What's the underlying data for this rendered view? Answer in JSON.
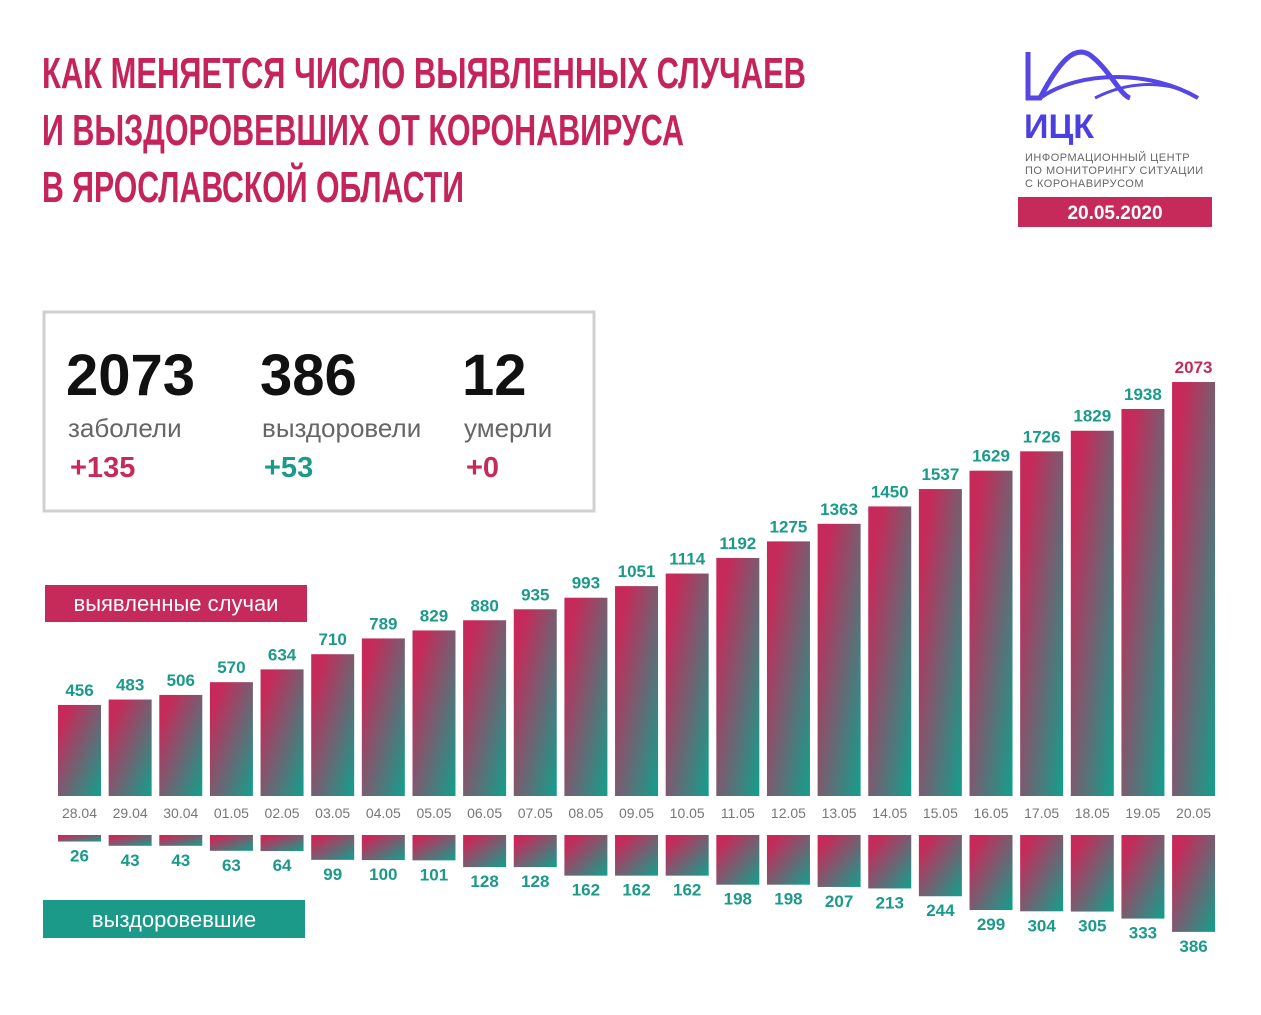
{
  "header": {
    "title_lines": [
      "КАК МЕНЯЕТСЯ ЧИСЛО ВЫЯВЛЕННЫХ СЛУЧАЕВ",
      "И ВЫЗДОРОВЕВШИХ ОТ КОРОНАВИРУСА",
      "В ЯРОСЛАВСКОЙ ОБЛАСТИ"
    ]
  },
  "logo": {
    "name": "ИЦК",
    "lines": [
      "ИНФОРМАЦИОННЫЙ ЦЕНТР",
      "ПО МОНИТОРИНГУ СИТУАЦИИ",
      "С КОРОНАВИРУСОМ"
    ],
    "date": "20.05.2020"
  },
  "summary": [
    {
      "value": 2073,
      "label": "заболели",
      "change": "+135"
    },
    {
      "value": 386,
      "label": "выздоровели",
      "change": "+53"
    },
    {
      "value": 12,
      "label": "умерли",
      "change": "+0"
    }
  ],
  "chart_data": {
    "type": "bar",
    "categories": [
      "28.04",
      "29.04",
      "30.04",
      "01.05",
      "02.05",
      "03.05",
      "04.05",
      "05.05",
      "06.05",
      "07.05",
      "08.05",
      "09.05",
      "10.05",
      "11.05",
      "12.05",
      "13.05",
      "14.05",
      "15.05",
      "16.05",
      "17.05",
      "18.05",
      "19.05",
      "20.05"
    ],
    "series": [
      {
        "name": "выявленные случаи",
        "color": "#c62a5a",
        "values": [
          456,
          483,
          506,
          570,
          634,
          710,
          789,
          829,
          880,
          935,
          993,
          1051,
          1114,
          1192,
          1275,
          1363,
          1450,
          1537,
          1629,
          1726,
          1829,
          1938,
          2073
        ]
      },
      {
        "name": "выздоровевшие",
        "color": "#1b9a8a",
        "values": [
          26,
          43,
          43,
          63,
          64,
          99,
          100,
          101,
          128,
          128,
          162,
          162,
          162,
          198,
          198,
          207,
          213,
          244,
          299,
          304,
          305,
          333,
          386
        ]
      }
    ]
  }
}
